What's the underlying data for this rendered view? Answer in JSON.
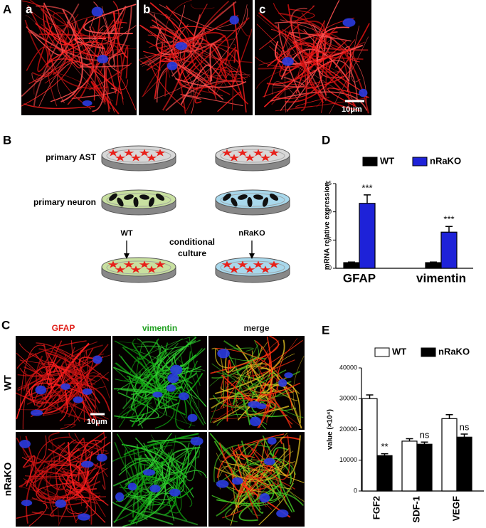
{
  "panels": {
    "A": {
      "label": "A",
      "subpanels": [
        "a",
        "b",
        "c"
      ],
      "scale_bar": "10μm"
    },
    "B": {
      "label": "B",
      "rows": [
        "primary AST",
        "primary neuron"
      ],
      "arrows": [
        "WT",
        "nRaKO"
      ],
      "center": [
        "conditional",
        "culture"
      ]
    },
    "C": {
      "label": "C",
      "columns": [
        "GFAP",
        "vimentin",
        "merge"
      ],
      "rows": [
        "WT",
        "nRaKO"
      ],
      "scale_bar": "10μm"
    }
  },
  "chart_data": [
    {
      "type": "bar",
      "panel": "D",
      "ylabel": "mRNA relative expression",
      "categories": [
        "GFAP",
        "vimentin"
      ],
      "series": [
        {
          "name": "WT",
          "color": "#000000",
          "values": [
            1,
            1
          ],
          "errors": [
            0.1,
            0.1
          ]
        },
        {
          "name": "nRaKO",
          "color": "#1e22d8",
          "values": [
            11.5,
            6.4
          ],
          "errors": [
            1.5,
            1.0
          ],
          "annotations": [
            "***",
            "***"
          ]
        }
      ],
      "ylim": [
        0,
        15
      ],
      "yticks": [
        0,
        5,
        10,
        15
      ]
    },
    {
      "type": "bar",
      "panel": "E",
      "ylabel": "value (×10⁴)",
      "categories": [
        "FGF2",
        "SDF-1",
        "VEGF"
      ],
      "series": [
        {
          "name": "WT",
          "color": "#ffffff",
          "values": [
            30000,
            16200,
            23500
          ],
          "errors": [
            1200,
            800,
            1300
          ]
        },
        {
          "name": "nRaKO",
          "color": "#000000",
          "values": [
            11500,
            15200,
            17500
          ],
          "errors": [
            600,
            700,
            1000
          ],
          "annotations": [
            "**",
            "ns",
            "ns"
          ]
        }
      ],
      "ylim": [
        0,
        40000
      ],
      "yticks": [
        0,
        10000,
        20000,
        30000,
        40000
      ]
    }
  ]
}
